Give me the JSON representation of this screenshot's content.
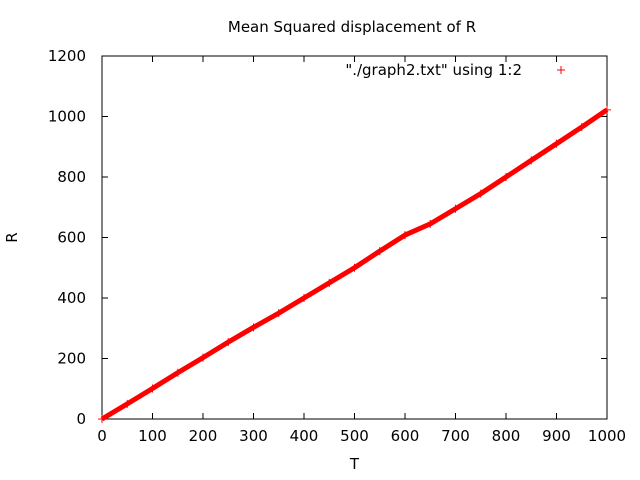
{
  "chart_data": {
    "type": "scatter",
    "title": "Mean Squared displacement of R",
    "xlabel": "T",
    "ylabel": "R",
    "xlim": [
      0,
      1000
    ],
    "ylim": [
      0,
      1200
    ],
    "x_ticks": [
      0,
      100,
      200,
      300,
      400,
      500,
      600,
      700,
      800,
      900,
      1000
    ],
    "y_ticks": [
      0,
      200,
      400,
      600,
      800,
      1000,
      1200
    ],
    "grid": false,
    "legend_position": "top-right",
    "marker": "+",
    "series": [
      {
        "name": "\"./graph2.txt\" using 1:2",
        "color": "#ff0000",
        "points": [
          [
            0,
            0
          ],
          [
            50,
            50
          ],
          [
            100,
            101
          ],
          [
            150,
            153
          ],
          [
            200,
            203
          ],
          [
            250,
            254
          ],
          [
            300,
            303
          ],
          [
            350,
            350
          ],
          [
            400,
            400
          ],
          [
            450,
            450
          ],
          [
            500,
            500
          ],
          [
            550,
            555
          ],
          [
            600,
            608
          ],
          [
            650,
            645
          ],
          [
            700,
            695
          ],
          [
            750,
            745
          ],
          [
            800,
            800
          ],
          [
            850,
            855
          ],
          [
            900,
            910
          ],
          [
            950,
            965
          ],
          [
            1000,
            1022
          ]
        ]
      }
    ]
  }
}
